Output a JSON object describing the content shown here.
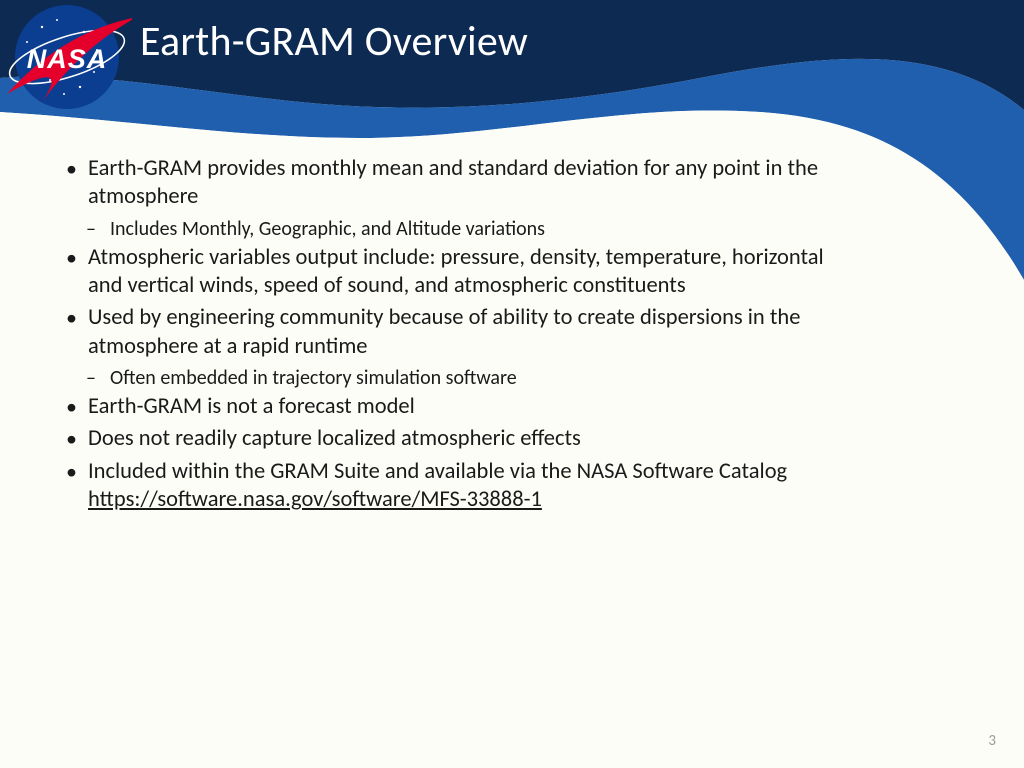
{
  "colors": {
    "dark_navy": "#0d2a52",
    "mid_blue": "#1f5fae",
    "swoosh_white": "#fdfdf8",
    "nasa_circle": "#0b3d91",
    "nasa_red": "#e4002b",
    "title_color": "#ffffff",
    "body_text": "#1a1a1a",
    "page_num": "#9a9a9a"
  },
  "title": "Earth-GRAM Overview",
  "logo": {
    "text": "NASA"
  },
  "bullets": [
    {
      "text": "Earth-GRAM provides monthly mean and standard deviation for any point in the atmosphere",
      "sub": [
        "Includes Monthly, Geographic, and Altitude variations"
      ]
    },
    {
      "text": "Atmospheric variables output include:  pressure, density, temperature, horizontal and vertical winds, speed of sound, and atmospheric constituents"
    },
    {
      "text": "Used by engineering community because of ability to create dispersions in the atmosphere at a rapid runtime",
      "sub": [
        "Often embedded in trajectory simulation software"
      ]
    },
    {
      "text": "Earth-GRAM is not a forecast model"
    },
    {
      "text": "Does not readily capture localized atmospheric effects"
    },
    {
      "text": "Included within the GRAM Suite and available via the NASA Software Catalog ",
      "link": "https://software.nasa.gov/software/MFS-33888-1"
    }
  ],
  "page_number": "3"
}
